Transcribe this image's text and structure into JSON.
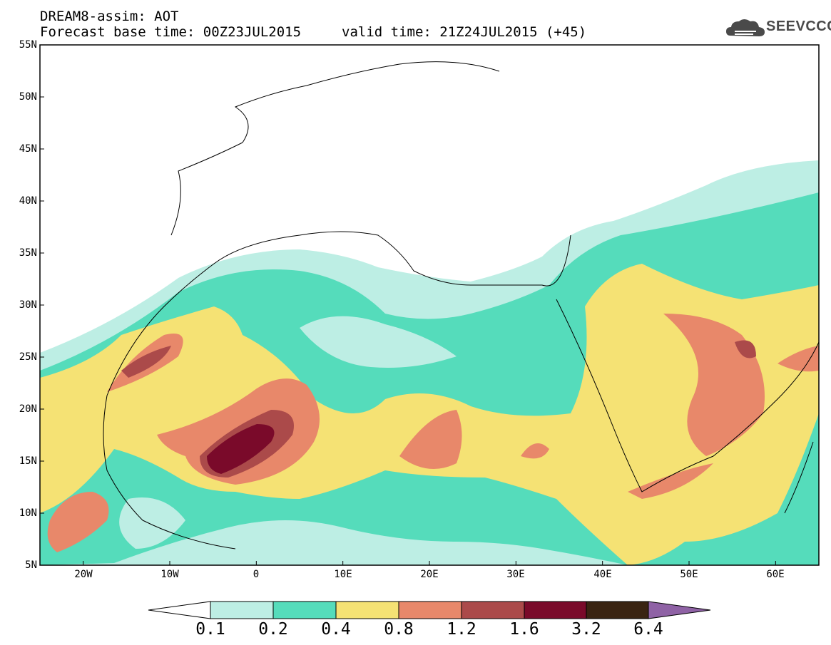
{
  "header": {
    "line1": "DREAM8-assim: AOT",
    "line2": "Forecast base time: 00Z23JUL2015",
    "line3": "valid time: 21Z24JUL2015 (+45)"
  },
  "logo": {
    "text": "SEEVCCC",
    "icon": "cloud-icon"
  },
  "map": {
    "lat_range": [
      5,
      55
    ],
    "lon_range": [
      -25,
      65
    ],
    "lat_ticks": [
      "55N",
      "50N",
      "45N",
      "40N",
      "35N",
      "30N",
      "25N",
      "20N",
      "15N",
      "10N",
      "5N"
    ],
    "lon_ticks": [
      "20W",
      "10W",
      "0",
      "10E",
      "20E",
      "30E",
      "40E",
      "50E",
      "60E"
    ]
  },
  "colorbar": {
    "labels": [
      "0.1",
      "0.2",
      "0.4",
      "0.8",
      "1.2",
      "1.6",
      "3.2",
      "6.4"
    ],
    "colors": [
      "#ffffff",
      "#bdeee4",
      "#55dcbb",
      "#f5e274",
      "#e8886a",
      "#ab4a4a",
      "#7a0a2a",
      "#3a2412",
      "#8f62a5"
    ]
  }
}
